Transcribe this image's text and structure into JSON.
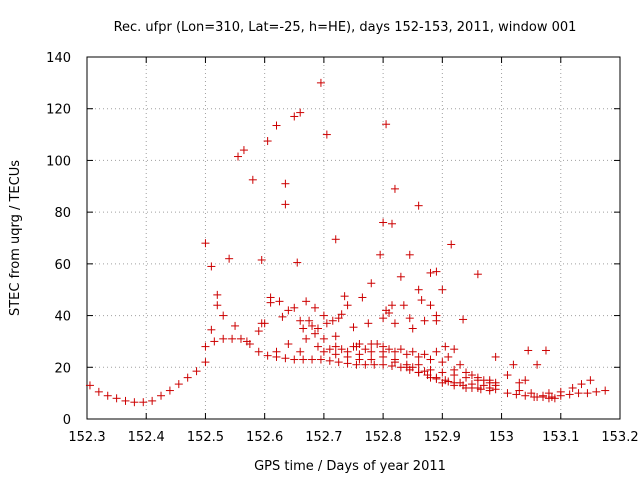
{
  "chart_data": {
    "type": "scatter",
    "title": "Rec. ufpr (Lon=310, Lat=-25, h=HE), days 152-153, 2011, window 001",
    "xlabel": "GPS time / Days of year 2011",
    "ylabel": "STEC from uqrg / TECUs",
    "xlim": [
      152.3,
      153.2
    ],
    "ylim": [
      0,
      140
    ],
    "xticks": [
      "152.3",
      "152.4",
      "152.5",
      "152.6",
      "152.7",
      "152.8",
      "152.9",
      "153",
      "153.1",
      "153.2"
    ],
    "yticks": [
      "0",
      "20",
      "40",
      "60",
      "80",
      "100",
      "120",
      "140"
    ],
    "grid": true,
    "marker": "+",
    "color": "#cc0000",
    "points": [
      [
        152.305,
        13
      ],
      [
        152.32,
        10.5
      ],
      [
        152.335,
        9
      ],
      [
        152.35,
        8
      ],
      [
        152.365,
        7
      ],
      [
        152.38,
        6.5
      ],
      [
        152.395,
        6.5
      ],
      [
        152.41,
        7
      ],
      [
        152.425,
        9
      ],
      [
        152.44,
        11
      ],
      [
        152.455,
        13.5
      ],
      [
        152.47,
        16
      ],
      [
        152.485,
        18.5
      ],
      [
        152.5,
        22
      ],
      [
        152.5,
        28
      ],
      [
        152.515,
        30
      ],
      [
        152.53,
        31
      ],
      [
        152.545,
        31
      ],
      [
        152.56,
        31
      ],
      [
        152.575,
        29
      ],
      [
        152.59,
        26
      ],
      [
        152.605,
        24.5
      ],
      [
        152.62,
        24
      ],
      [
        152.635,
        23.5
      ],
      [
        152.65,
        23
      ],
      [
        152.665,
        23
      ],
      [
        152.68,
        23
      ],
      [
        152.695,
        23
      ],
      [
        152.71,
        22.5
      ],
      [
        152.725,
        22
      ],
      [
        152.74,
        21.5
      ],
      [
        152.755,
        21
      ],
      [
        152.77,
        21
      ],
      [
        152.785,
        21
      ],
      [
        152.8,
        21
      ],
      [
        152.815,
        20.5
      ],
      [
        152.83,
        20
      ],
      [
        152.845,
        19
      ],
      [
        152.86,
        18
      ],
      [
        152.875,
        17
      ],
      [
        152.89,
        16
      ],
      [
        152.905,
        15
      ],
      [
        152.92,
        14
      ],
      [
        152.935,
        13
      ],
      [
        152.95,
        12
      ],
      [
        152.965,
        11.5
      ],
      [
        152.98,
        11
      ],
      [
        153.01,
        10
      ],
      [
        153.025,
        9.5
      ],
      [
        153.04,
        9
      ],
      [
        153.055,
        8.5
      ],
      [
        153.07,
        8.5
      ],
      [
        153.085,
        8.5
      ],
      [
        153.1,
        9
      ],
      [
        153.115,
        9.5
      ],
      [
        153.13,
        10
      ],
      [
        153.145,
        10
      ],
      [
        153.16,
        10.5
      ],
      [
        153.175,
        11
      ],
      [
        152.5,
        68
      ],
      [
        152.51,
        59
      ],
      [
        152.52,
        48
      ],
      [
        152.52,
        44
      ],
      [
        152.54,
        62
      ],
      [
        152.555,
        101.5
      ],
      [
        152.565,
        104
      ],
      [
        152.58,
        92.5
      ],
      [
        152.595,
        61.5
      ],
      [
        152.605,
        107.5
      ],
      [
        152.62,
        113.5
      ],
      [
        152.635,
        91
      ],
      [
        152.635,
        83
      ],
      [
        152.65,
        117
      ],
      [
        152.66,
        118.5
      ],
      [
        152.695,
        130
      ],
      [
        152.705,
        110
      ],
      [
        152.72,
        69.5
      ],
      [
        152.805,
        114
      ],
      [
        152.8,
        76
      ],
      [
        152.815,
        75.5
      ],
      [
        152.82,
        89
      ],
      [
        152.845,
        63.5
      ],
      [
        152.86,
        82.5
      ],
      [
        152.915,
        67.5
      ],
      [
        152.96,
        56
      ],
      [
        152.51,
        34.5
      ],
      [
        152.53,
        40
      ],
      [
        152.55,
        36
      ],
      [
        152.57,
        30
      ],
      [
        152.59,
        34
      ],
      [
        152.595,
        37
      ],
      [
        152.61,
        45
      ],
      [
        152.61,
        47
      ],
      [
        152.625,
        45.5
      ],
      [
        152.63,
        39.5
      ],
      [
        152.64,
        42
      ],
      [
        152.65,
        43
      ],
      [
        152.655,
        60.5
      ],
      [
        152.66,
        38
      ],
      [
        152.665,
        35
      ],
      [
        152.67,
        45.5
      ],
      [
        152.675,
        38
      ],
      [
        152.685,
        33
      ],
      [
        152.685,
        43
      ],
      [
        152.69,
        35
      ],
      [
        152.7,
        40
      ],
      [
        152.705,
        37
      ],
      [
        152.715,
        38
      ],
      [
        152.72,
        32
      ],
      [
        152.725,
        39
      ],
      [
        152.73,
        40.5
      ],
      [
        152.735,
        47.5
      ],
      [
        152.74,
        44
      ],
      [
        152.75,
        35.5
      ],
      [
        152.755,
        28
      ],
      [
        152.76,
        29
      ],
      [
        152.765,
        47
      ],
      [
        152.775,
        37
      ],
      [
        152.78,
        52.5
      ],
      [
        152.795,
        63.5
      ],
      [
        152.8,
        39
      ],
      [
        152.805,
        42
      ],
      [
        152.81,
        41
      ],
      [
        152.815,
        44
      ],
      [
        152.82,
        37
      ],
      [
        152.83,
        55
      ],
      [
        152.835,
        44
      ],
      [
        152.845,
        39
      ],
      [
        152.85,
        35
      ],
      [
        152.86,
        50
      ],
      [
        152.865,
        46
      ],
      [
        152.87,
        38
      ],
      [
        152.88,
        56.5
      ],
      [
        152.88,
        44
      ],
      [
        152.89,
        57
      ],
      [
        152.89,
        40
      ],
      [
        152.89,
        38
      ],
      [
        152.9,
        50
      ],
      [
        152.905,
        28
      ],
      [
        152.92,
        27
      ],
      [
        152.935,
        38.5
      ],
      [
        152.99,
        24
      ],
      [
        152.6,
        37
      ],
      [
        152.62,
        26
      ],
      [
        152.64,
        29
      ],
      [
        152.66,
        26
      ],
      [
        152.67,
        31
      ],
      [
        152.68,
        36
      ],
      [
        152.69,
        28
      ],
      [
        152.7,
        31
      ],
      [
        152.71,
        27
      ],
      [
        152.72,
        28
      ],
      [
        152.73,
        27
      ],
      [
        152.74,
        26
      ],
      [
        152.75,
        28
      ],
      [
        152.76,
        25
      ],
      [
        152.77,
        27
      ],
      [
        152.78,
        26
      ],
      [
        152.79,
        29
      ],
      [
        152.8,
        28
      ],
      [
        152.81,
        27
      ],
      [
        152.82,
        26
      ],
      [
        152.83,
        27
      ],
      [
        152.84,
        25
      ],
      [
        152.85,
        26
      ],
      [
        152.86,
        24
      ],
      [
        152.87,
        25
      ],
      [
        152.88,
        23
      ],
      [
        152.89,
        26
      ],
      [
        152.9,
        22
      ],
      [
        152.91,
        24
      ],
      [
        152.92,
        19
      ],
      [
        152.93,
        21
      ],
      [
        152.94,
        18
      ],
      [
        152.95,
        17
      ],
      [
        152.96,
        16
      ],
      [
        152.97,
        15
      ],
      [
        152.98,
        14
      ],
      [
        152.99,
        13
      ],
      [
        152.7,
        26
      ],
      [
        152.72,
        25
      ],
      [
        152.74,
        24
      ],
      [
        152.76,
        23
      ],
      [
        152.78,
        23
      ],
      [
        152.8,
        24
      ],
      [
        152.82,
        22
      ],
      [
        152.84,
        21
      ],
      [
        152.86,
        21
      ],
      [
        152.88,
        19
      ],
      [
        152.9,
        18
      ],
      [
        152.92,
        17
      ],
      [
        152.94,
        16
      ],
      [
        152.96,
        15
      ],
      [
        152.98,
        15
      ],
      [
        152.99,
        14
      ],
      [
        152.78,
        29
      ],
      [
        152.8,
        26
      ],
      [
        152.82,
        23
      ],
      [
        152.84,
        20
      ],
      [
        152.86,
        18
      ],
      [
        152.88,
        16
      ],
      [
        152.9,
        14
      ],
      [
        152.92,
        13
      ],
      [
        152.94,
        12
      ],
      [
        152.96,
        12
      ],
      [
        152.98,
        12
      ],
      [
        152.99,
        11.5
      ],
      [
        152.85,
        20
      ],
      [
        152.87,
        18.5
      ],
      [
        152.89,
        15.5
      ],
      [
        152.91,
        14.5
      ],
      [
        152.93,
        14
      ],
      [
        152.95,
        13.5
      ],
      [
        152.97,
        13
      ],
      [
        153.01,
        17
      ],
      [
        153.02,
        21
      ],
      [
        153.03,
        14
      ],
      [
        153.04,
        15
      ],
      [
        153.045,
        26.5
      ],
      [
        153.06,
        21
      ],
      [
        153.075,
        26.5
      ],
      [
        153.03,
        11
      ],
      [
        153.05,
        10
      ],
      [
        153.07,
        9
      ],
      [
        153.08,
        10
      ],
      [
        153.09,
        8
      ],
      [
        153.1,
        10.5
      ],
      [
        153.12,
        12
      ],
      [
        153.135,
        13.5
      ],
      [
        153.15,
        15
      ],
      [
        153.08,
        8
      ],
      [
        153.06,
        8.5
      ]
    ]
  }
}
